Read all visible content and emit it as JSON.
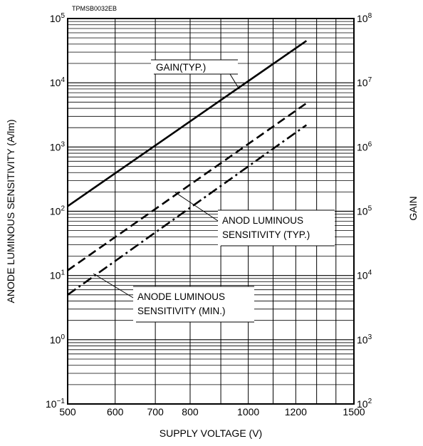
{
  "chart_data": {
    "type": "line",
    "figure_id": "TPMSB0032EB",
    "xlabel": "SUPPLY VOLTAGE (V)",
    "ylabel_left": "ANODE LUMINOUS SENSITIVITY (A/lm)",
    "ylabel_right": "GAIN",
    "x_scale": "log",
    "y_scale": "log",
    "xlim": [
      500,
      1500
    ],
    "ylim_left": [
      0.1,
      100000
    ],
    "ylim_right": [
      100,
      100000000
    ],
    "grid": true,
    "x_ticks": [
      {
        "v": 500,
        "label": "500"
      },
      {
        "v": 600,
        "label": "600"
      },
      {
        "v": 700,
        "label": "700"
      },
      {
        "v": 800,
        "label": "800"
      },
      {
        "v": 1000,
        "label": "1000"
      },
      {
        "v": 1200,
        "label": "1200"
      },
      {
        "v": 1500,
        "label": "1500"
      }
    ],
    "y_ticks_left": [
      {
        "v": 0.1,
        "base": "10",
        "exp": "−1"
      },
      {
        "v": 1,
        "base": "10",
        "exp": "0"
      },
      {
        "v": 10,
        "base": "10",
        "exp": "1"
      },
      {
        "v": 100,
        "base": "10",
        "exp": "2"
      },
      {
        "v": 1000,
        "base": "10",
        "exp": "3"
      },
      {
        "v": 10000,
        "base": "10",
        "exp": "4"
      },
      {
        "v": 100000,
        "base": "10",
        "exp": "5"
      }
    ],
    "y_ticks_right": [
      {
        "v": 100,
        "base": "10",
        "exp": "2"
      },
      {
        "v": 1000,
        "base": "10",
        "exp": "3"
      },
      {
        "v": 10000,
        "base": "10",
        "exp": "4"
      },
      {
        "v": 100000,
        "base": "10",
        "exp": "5"
      },
      {
        "v": 1000000,
        "base": "10",
        "exp": "6"
      },
      {
        "v": 10000000,
        "base": "10",
        "exp": "7"
      },
      {
        "v": 100000000,
        "base": "10",
        "exp": "8"
      }
    ],
    "series": [
      {
        "name": "GAIN(TYP.)",
        "axis": "right",
        "style": "solid",
        "x": [
          500,
          1250
        ],
        "y": [
          120000,
          45000000
        ]
      },
      {
        "name": "ANOD LUMINOUS SENSITIVITY (TYP.)",
        "axis": "left",
        "style": "dashed",
        "x": [
          500,
          1250
        ],
        "y": [
          12,
          4800
        ]
      },
      {
        "name": "ANODE LUMINOUS SENSITIVITY (MIN.)",
        "axis": "left",
        "style": "dashdot",
        "x": [
          500,
          1250
        ],
        "y": [
          5,
          2200
        ]
      }
    ],
    "annotations": [
      {
        "series": 0,
        "lines": [
          "GAIN(TYP.)"
        ]
      },
      {
        "series": 1,
        "lines": [
          "ANOD LUMINOUS",
          "SENSITIVITY (TYP.)"
        ]
      },
      {
        "series": 2,
        "lines": [
          "ANODE LUMINOUS",
          "SENSITIVITY (MIN.)"
        ]
      }
    ]
  }
}
